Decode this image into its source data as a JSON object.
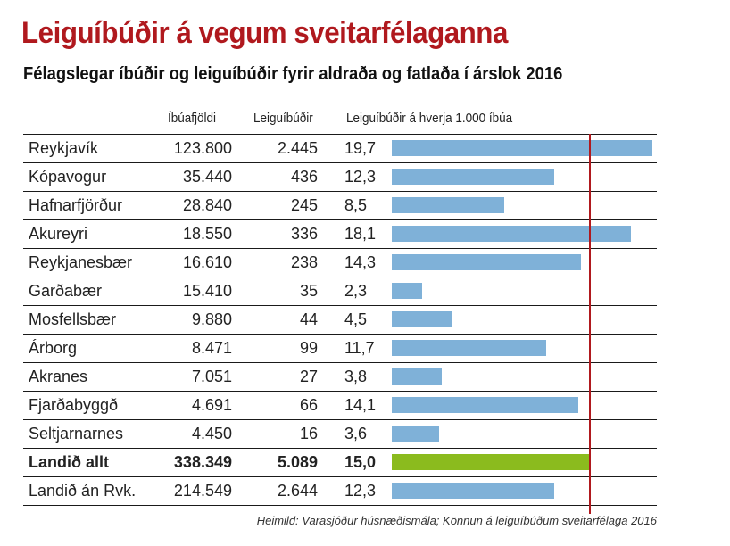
{
  "chart_data": {
    "type": "table",
    "title": "Leiguíbúðir á vegum sveitarfélaganna",
    "subtitle": "Félagslegar íbúðir og leiguíbúðir fyrir aldraða og fatlaða í árslok 2016",
    "columns": [
      "Íbúafjöldi",
      "Leiguíbúðir",
      "Leiguíbúðir á hverja 1.000 íbúa"
    ],
    "rows": [
      {
        "name": "Reykjavík",
        "population": "123.800",
        "rentals": "2.445",
        "per_1000": "19,7",
        "value": 19.7,
        "bold": false,
        "highlight": false
      },
      {
        "name": "Kópavogur",
        "population": "35.440",
        "rentals": "436",
        "per_1000": "12,3",
        "value": 12.3,
        "bold": false,
        "highlight": false
      },
      {
        "name": "Hafnarfjörður",
        "population": "28.840",
        "rentals": "245",
        "per_1000": "8,5",
        "value": 8.5,
        "bold": false,
        "highlight": false
      },
      {
        "name": "Akureyri",
        "population": "18.550",
        "rentals": "336",
        "per_1000": "18,1",
        "value": 18.1,
        "bold": false,
        "highlight": false
      },
      {
        "name": "Reykjanesbær",
        "population": "16.610",
        "rentals": "238",
        "per_1000": "14,3",
        "value": 14.3,
        "bold": false,
        "highlight": false
      },
      {
        "name": "Garðabær",
        "population": "15.410",
        "rentals": "35",
        "per_1000": "2,3",
        "value": 2.3,
        "bold": false,
        "highlight": false
      },
      {
        "name": "Mosfellsbær",
        "population": "9.880",
        "rentals": "44",
        "per_1000": "4,5",
        "value": 4.5,
        "bold": false,
        "highlight": false
      },
      {
        "name": "Árborg",
        "population": "8.471",
        "rentals": "99",
        "per_1000": "11,7",
        "value": 11.7,
        "bold": false,
        "highlight": false
      },
      {
        "name": "Akranes",
        "population": "7.051",
        "rentals": "27",
        "per_1000": "3,8",
        "value": 3.8,
        "bold": false,
        "highlight": false
      },
      {
        "name": "Fjarðabyggð",
        "population": "4.691",
        "rentals": "66",
        "per_1000": "14,1",
        "value": 14.1,
        "bold": false,
        "highlight": false
      },
      {
        "name": "Seltjarnarnes",
        "population": "4.450",
        "rentals": "16",
        "per_1000": "3,6",
        "value": 3.6,
        "bold": false,
        "highlight": false
      },
      {
        "name": "Landið allt",
        "population": "338.349",
        "rentals": "5.089",
        "per_1000": "15,0",
        "value": 15.0,
        "bold": true,
        "highlight": true
      },
      {
        "name": "Landið án Rvk.",
        "population": "214.549",
        "rentals": "2.644",
        "per_1000": "12,3",
        "value": 12.3,
        "bold": false,
        "highlight": false
      }
    ],
    "reference_line": 15.0,
    "x_range": [
      0,
      20
    ],
    "bar_color": "#7fb1d8",
    "highlight_color": "#8bbb1e",
    "reference_color": "#b0191e"
  },
  "source": "Heimild: Varasjóður húsnæðismála; Könnun á leiguíbúðum sveitarfélaga 2016"
}
